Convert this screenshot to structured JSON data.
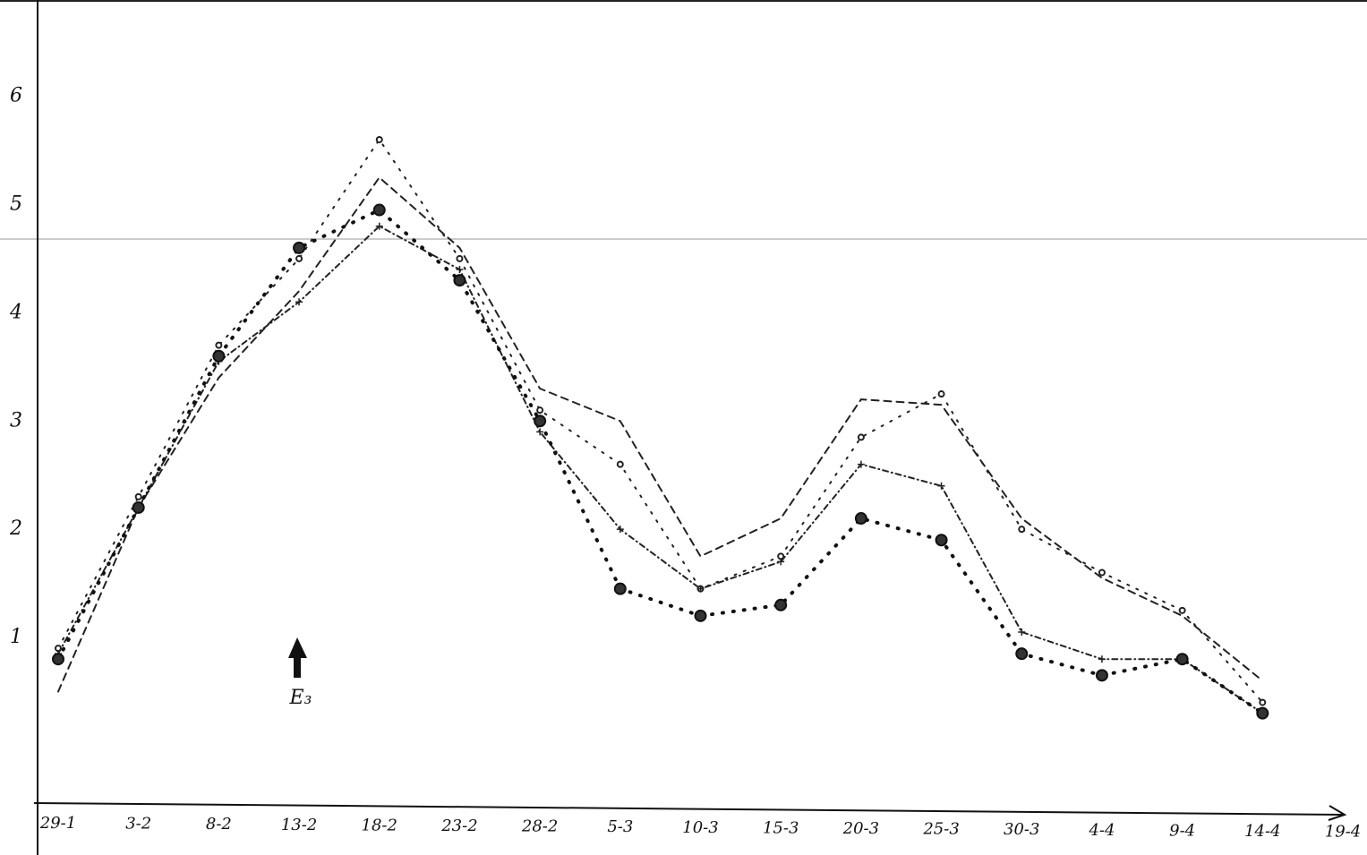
{
  "chart_data": {
    "type": "line",
    "categories": [
      "29-1",
      "3-2",
      "8-2",
      "13-2",
      "18-2",
      "23-2",
      "28-2",
      "5-3",
      "10-3",
      "15-3",
      "20-3",
      "25-3",
      "30-3",
      "4-4",
      "9-4",
      "14-4",
      "19-4"
    ],
    "series": [
      {
        "color": "#222",
        "values": [
          0.5,
          2.2,
          3.4,
          4.2,
          5.25,
          4.6,
          3.3,
          3.0,
          1.75,
          2.1,
          3.2,
          3.15,
          2.1,
          1.55,
          1.2,
          0.6,
          null
        ]
      },
      {
        "color": "#222",
        "values": [
          0.9,
          2.3,
          3.7,
          4.5,
          5.6,
          4.5,
          3.1,
          2.6,
          1.45,
          1.75,
          2.85,
          3.25,
          2.0,
          1.6,
          1.25,
          0.4,
          null
        ]
      },
      {
        "color": "#222",
        "values": [
          0.85,
          2.2,
          3.55,
          4.1,
          4.8,
          4.4,
          2.9,
          2.0,
          1.45,
          1.7,
          2.6,
          2.4,
          1.05,
          0.8,
          0.8,
          0.3,
          null
        ]
      },
      {
        "color": "#111",
        "values": [
          0.8,
          2.2,
          3.6,
          4.6,
          4.95,
          4.3,
          3.0,
          1.45,
          1.2,
          1.3,
          2.1,
          1.9,
          0.85,
          0.65,
          0.8,
          0.3,
          null
        ]
      }
    ],
    "ylim": [
      -0.53,
      6.89
    ],
    "yticks": [
      1,
      2,
      3,
      4,
      5,
      6
    ],
    "grid": false,
    "annotation": "E₃"
  }
}
